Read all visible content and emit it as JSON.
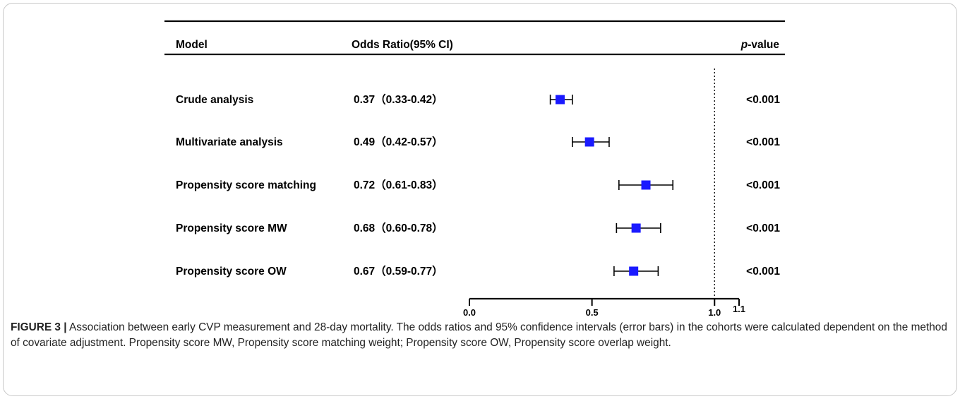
{
  "chart_data": {
    "type": "forest",
    "columns": {
      "model": "Model",
      "or": "Odds Ratio(95% CI)",
      "p_italic": "p",
      "p_rest": "-value"
    },
    "rows": [
      {
        "label": "Crude analysis",
        "or_text": "0.37（0.33-0.42）",
        "or": 0.37,
        "lo": 0.33,
        "hi": 0.42,
        "p": "<0.001"
      },
      {
        "label": "Multivariate analysis",
        "or_text": "0.49（0.42-0.57）",
        "or": 0.49,
        "lo": 0.42,
        "hi": 0.57,
        "p": "<0.001"
      },
      {
        "label": "Propensity score matching",
        "or_text": "0.72（0.61-0.83）",
        "or": 0.72,
        "lo": 0.61,
        "hi": 0.83,
        "p": "<0.001"
      },
      {
        "label": "Propensity score MW",
        "or_text": "0.68（0.60-0.78）",
        "or": 0.68,
        "lo": 0.6,
        "hi": 0.78,
        "p": "<0.001"
      },
      {
        "label": "Propensity score OW",
        "or_text": "0.67（0.59-0.77）",
        "or": 0.67,
        "lo": 0.59,
        "hi": 0.77,
        "p": "<0.001"
      }
    ],
    "xlim": [
      0,
      1.1
    ],
    "ticks": [
      {
        "value": 0.0,
        "label": "0.0"
      },
      {
        "value": 0.5,
        "label": "0.5"
      },
      {
        "value": 1.0,
        "label": "1.0"
      },
      {
        "value": 1.1,
        "label": "1.1"
      }
    ],
    "reference_value": 1.0,
    "marker_color": "#1a1aff"
  },
  "caption": {
    "label": "FIGURE 3 |",
    "text": " Association between early CVP measurement and 28-day mortality. The odds ratios and 95% confidence intervals (error bars) in the cohorts were calculated dependent on the method of covariate adjustment. Propensity score MW, Propensity score matching weight; Propensity score OW, Propensity score overlap weight."
  }
}
